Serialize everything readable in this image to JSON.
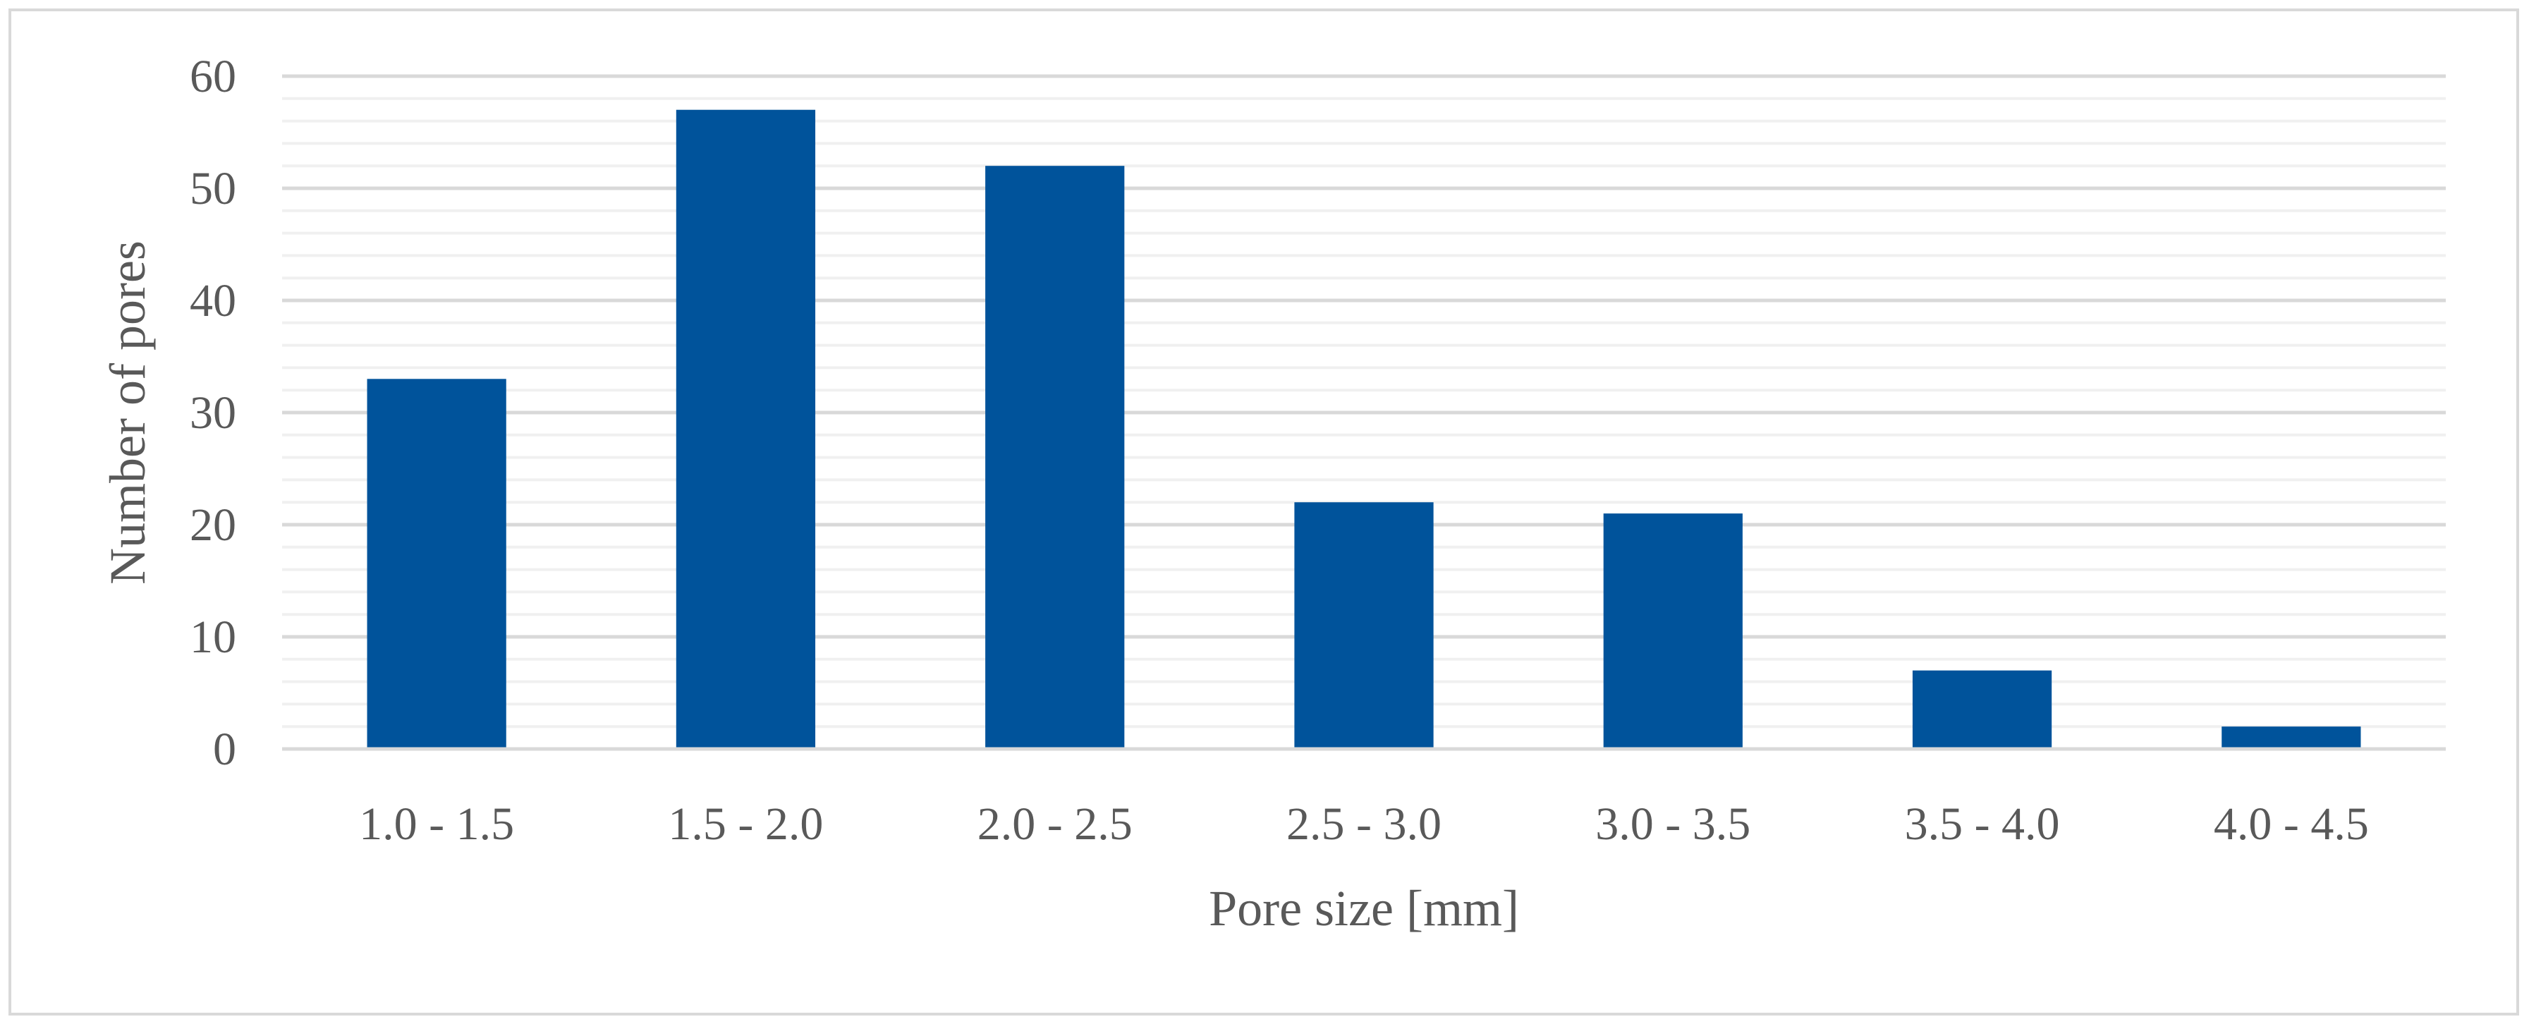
{
  "chart_data": {
    "type": "bar",
    "categories": [
      "1.0 - 1.5",
      "1.5 - 2.0",
      "2.0 - 2.5",
      "2.5 - 3.0",
      "3.0 - 3.5",
      "3.5 - 4.0",
      "4.0 - 4.5"
    ],
    "series": [
      {
        "values": [
          33,
          57,
          52,
          22,
          21,
          7,
          2
        ]
      }
    ],
    "title": "",
    "xlabel": "Pore size [mm]",
    "ylabel": "Number of pores",
    "ylim": [
      0,
      60
    ],
    "yticks": [
      0,
      10,
      20,
      30,
      40,
      50,
      60
    ],
    "ytick_labels": [
      "0",
      "10",
      "20",
      "30",
      "40",
      "50",
      "60"
    ],
    "minor_grid_step": 2,
    "grid": true,
    "legend": "none",
    "colors": {
      "bar": "#00539b",
      "grid": "#d9d9d9",
      "text": "#595959"
    }
  }
}
